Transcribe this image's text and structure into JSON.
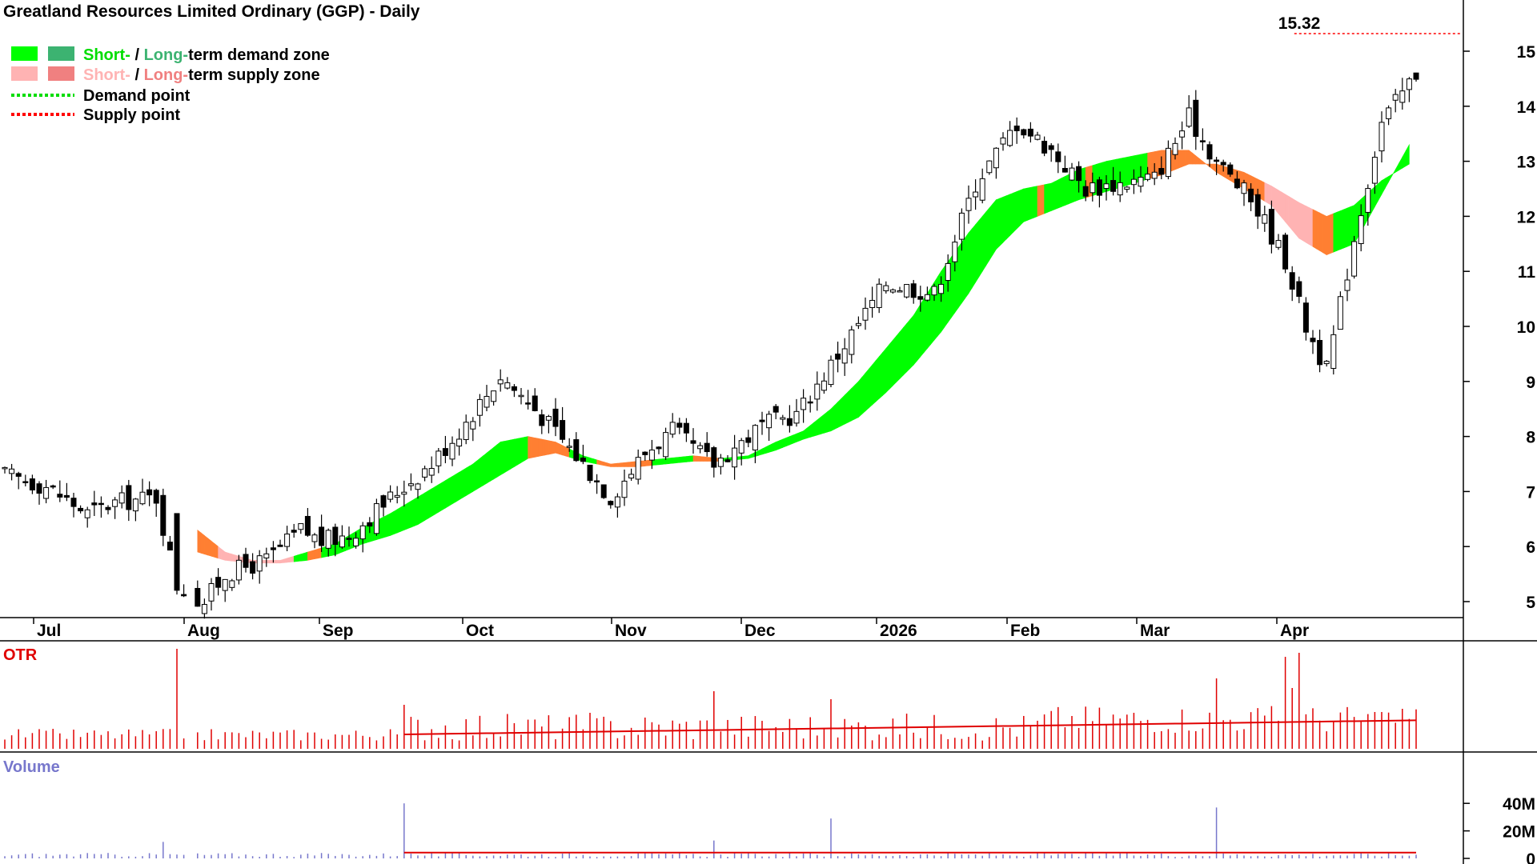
{
  "header": {
    "title": "Greatland Resources Limited Ordinary (GGP) - Daily"
  },
  "legend": {
    "short_prefix": "Short-",
    "slash": " / ",
    "long_prefix": "Long-",
    "demand_suffix": "term demand zone",
    "supply_suffix": "term supply zone",
    "demand_point": "Demand point",
    "supply_point": "Supply point"
  },
  "colors": {
    "short_demand": "#00ff00",
    "long_demand": "#3cb371",
    "short_supply": "#ffb3b3",
    "long_supply": "#f08080",
    "supply_orange": "#ff7f32",
    "demand_point": "#00dd00",
    "supply_point": "#ff0000",
    "otr": "#e00000",
    "volume": "#7777cc",
    "volume_avg": "#e00000"
  },
  "annotations": {
    "high_label": "15.32",
    "high_value": 15.32
  },
  "panels": {
    "otr_label": "OTR",
    "volume_label": "Volume"
  },
  "chart_data": [
    {
      "type": "candlestick",
      "title": "Greatland Resources Limited Ordinary (GGP) - Daily",
      "x_ticks": [
        "Jul",
        "Aug",
        "Sep",
        "Oct",
        "Nov",
        "Dec",
        "2026",
        "Feb",
        "Mar",
        "Apr"
      ],
      "y_ticks": [
        5,
        6,
        7,
        8,
        9,
        10,
        11,
        12,
        13,
        14,
        15
      ],
      "ylim": [
        4.7,
        15.9
      ],
      "scale": "linear",
      "grid": false,
      "legend_position": "top-left",
      "price_waypoints": {
        "comment": "approximate close by trading day index",
        "days": [
          0,
          6,
          12,
          16,
          22,
          25,
          28,
          29,
          32,
          38,
          43,
          46,
          50,
          57,
          62,
          66,
          72,
          77,
          82,
          88,
          93,
          97,
          103,
          110,
          115,
          120,
          128,
          135,
          141,
          147,
          152,
          157,
          162,
          167,
          172,
          176,
          181,
          183,
          186,
          189,
          192,
          196,
          200,
          205
        ],
        "close": [
          7.3,
          7.1,
          6.6,
          6.8,
          6.9,
          5.3,
          5.05,
          5.0,
          5.5,
          5.75,
          6.3,
          6.1,
          6.2,
          7.0,
          7.5,
          8.1,
          9.1,
          8.5,
          7.8,
          6.9,
          7.7,
          8.1,
          7.5,
          8.2,
          8.4,
          9.3,
          10.8,
          10.6,
          12.6,
          13.7,
          13.2,
          12.5,
          12.6,
          12.7,
          13.8,
          13.0,
          12.3,
          11.9,
          11.2,
          10.0,
          9.2,
          11.6,
          13.7,
          14.6
        ]
      },
      "demand_supply_band": {
        "days": [
          28,
          32,
          36,
          40,
          44,
          48,
          52,
          56,
          60,
          64,
          68,
          72,
          76,
          80,
          84,
          88,
          92,
          96,
          100,
          104,
          108,
          112,
          116,
          120,
          124,
          128,
          132,
          136,
          140,
          144,
          148,
          152,
          156,
          160,
          164,
          168,
          172,
          176,
          180,
          184,
          188,
          192,
          196,
          200,
          204
        ],
        "short_term": [
          6.3,
          5.9,
          5.75,
          5.75,
          5.9,
          6.05,
          6.35,
          6.6,
          6.9,
          7.2,
          7.5,
          7.9,
          8.0,
          7.9,
          7.65,
          7.5,
          7.55,
          7.6,
          7.65,
          7.6,
          7.65,
          7.9,
          8.1,
          8.5,
          9.0,
          9.6,
          10.2,
          11.0,
          11.7,
          12.3,
          12.5,
          12.6,
          12.85,
          13.0,
          13.1,
          13.2,
          13.2,
          12.8,
          12.5,
          12.2,
          11.6,
          11.3,
          11.5,
          12.4,
          13.3
        ],
        "long_term": [
          5.9,
          5.75,
          5.7,
          5.7,
          5.75,
          5.85,
          6.05,
          6.2,
          6.4,
          6.7,
          7.0,
          7.3,
          7.6,
          7.7,
          7.55,
          7.45,
          7.45,
          7.5,
          7.55,
          7.55,
          7.6,
          7.75,
          7.95,
          8.1,
          8.35,
          8.8,
          9.3,
          9.9,
          10.6,
          11.4,
          11.9,
          12.1,
          12.3,
          12.45,
          12.6,
          12.75,
          12.95,
          12.95,
          12.8,
          12.55,
          12.25,
          12.0,
          12.2,
          12.65,
          12.95
        ],
        "supply_ranges": [
          [
            28,
            31
          ],
          [
            31,
            42
          ],
          [
            44,
            46
          ],
          [
            76,
            82
          ],
          [
            86,
            94
          ],
          [
            100,
            104
          ],
          [
            150,
            151
          ],
          [
            157,
            158
          ],
          [
            166,
            176
          ],
          [
            176,
            183
          ],
          [
            183,
            190
          ],
          [
            190,
            193
          ]
        ],
        "supply_ranges_light": [
          [
            31,
            42
          ],
          [
            183,
            190
          ]
        ]
      },
      "high_marker": {
        "label": "15.32",
        "value": 15.32,
        "day": 188
      }
    },
    {
      "type": "bar",
      "name": "OTR",
      "note": "red spikes with red moving-average line, no axis labels"
    },
    {
      "type": "bar",
      "name": "Volume",
      "y_ticks": [
        "0",
        "20M",
        "40M"
      ],
      "ylim": [
        0,
        44
      ],
      "unit": "M",
      "spikes": [
        {
          "day": 58,
          "value": 40
        },
        {
          "day": 23,
          "value": 12
        },
        {
          "day": 103,
          "value": 13
        },
        {
          "day": 120,
          "value": 29
        },
        {
          "day": 176,
          "value": 37
        }
      ]
    }
  ]
}
